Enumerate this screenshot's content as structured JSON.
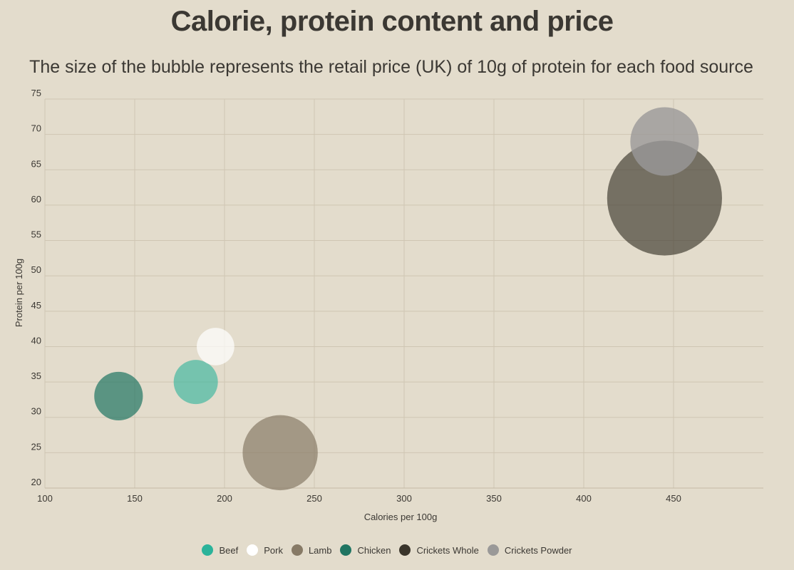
{
  "chart_data": {
    "type": "scatter",
    "title": "Calorie, protein content and price",
    "subtitle": "The size of the bubble represents the retail price (UK) of 10g of protein for each food source",
    "xlabel": "Calories per 100g",
    "ylabel": "Protein per 100g",
    "xlim": [
      100,
      500
    ],
    "ylim": [
      20,
      75
    ],
    "x_ticks": [
      "100",
      "150",
      "200",
      "250",
      "300",
      "350",
      "400",
      "450"
    ],
    "y_ticks": [
      "20",
      "25",
      "30",
      "35",
      "40",
      "45",
      "50",
      "55",
      "60",
      "65",
      "70",
      "75"
    ],
    "grid": true,
    "legend_position": "bottom",
    "series": [
      {
        "name": "Beef",
        "color": "#2bb39a",
        "opacity": 0.6,
        "x": 184,
        "y": 35,
        "size": 1.0
      },
      {
        "name": "Pork",
        "color": "#ffffff",
        "opacity": 0.7,
        "x": 195,
        "y": 40,
        "size": 0.85
      },
      {
        "name": "Lamb",
        "color": "#877a66",
        "opacity": 0.7,
        "x": 231,
        "y": 25,
        "size": 1.7
      },
      {
        "name": "Chicken",
        "color": "#207562",
        "opacity": 0.7,
        "x": 141,
        "y": 33,
        "size": 1.1
      },
      {
        "name": "Crickets Whole",
        "color": "#3a352b",
        "opacity": 0.65,
        "x": 445,
        "y": 61,
        "size": 2.6
      },
      {
        "name": "Crickets Powder",
        "color": "#9a9998",
        "opacity": 0.8,
        "x": 445,
        "y": 69,
        "size": 1.55
      }
    ]
  }
}
